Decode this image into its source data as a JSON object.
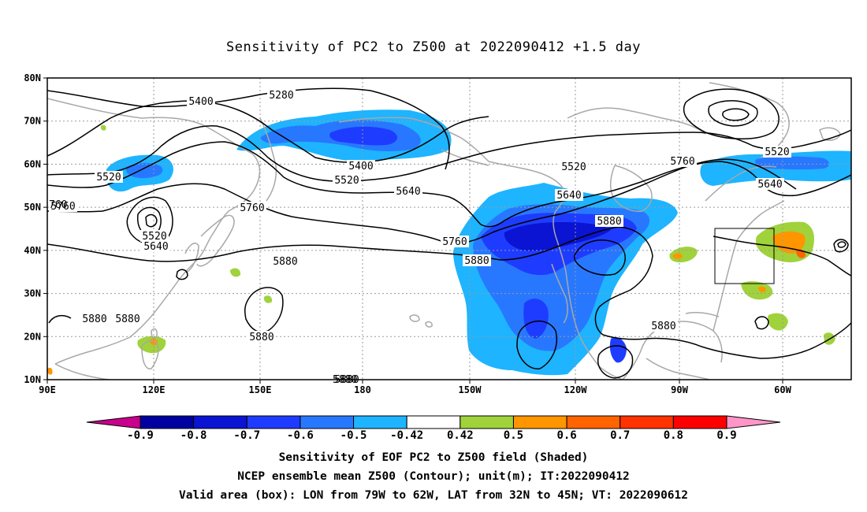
{
  "title": "Sensitivity of PC2 to Z500 at 2022090412 +1.5 day",
  "lat_labels": [
    "80N",
    "70N",
    "60N",
    "50N",
    "40N",
    "30N",
    "20N",
    "10N"
  ],
  "lon_labels": [
    "90E",
    "120E",
    "150E",
    "180",
    "150W",
    "120W",
    "90W",
    "60W"
  ],
  "contour_labels": [
    "5280",
    "5400",
    "5400",
    "5520",
    "5520",
    "5520",
    "5520",
    "5520",
    "5640",
    "5640",
    "5640",
    "5640",
    "5760",
    "5760",
    "5760",
    "5760",
    "5880",
    "5880",
    "5880",
    "5880",
    "5880",
    "5880",
    "5880",
    "5880",
    "760",
    "5880"
  ],
  "colorbar": {
    "labels": [
      "-0.9",
      "-0.8",
      "-0.7",
      "-0.6",
      "-0.5",
      "-0.42",
      "0.42",
      "0.5",
      "0.6",
      "0.7",
      "0.8",
      "0.9"
    ],
    "colors": [
      "#c8008c",
      "#0000a0",
      "#0a14d2",
      "#1e3cff",
      "#2878ff",
      "#1eb4ff",
      "#ffffff",
      "#a0d23c",
      "#ff9600",
      "#ff6400",
      "#ff3200",
      "#ff0000",
      "#ff96c8"
    ]
  },
  "shading_colors": {
    "dark_blue": "#0a14d2",
    "blue": "#1e3cff",
    "mid_blue": "#2878ff",
    "light_blue": "#1eb4ff",
    "green": "#a0d23c",
    "orange": "#ff9600",
    "dark_orange": "#ff6400"
  },
  "captions": [
    "Sensitivity of EOF PC2 to Z500 field (Shaded)",
    "NCEP ensemble mean Z500 (Contour); unit(m); IT:2022090412",
    "Valid area (box): LON from 79W to 62W, LAT from 32N to 45N; VT: 2022090612"
  ]
}
